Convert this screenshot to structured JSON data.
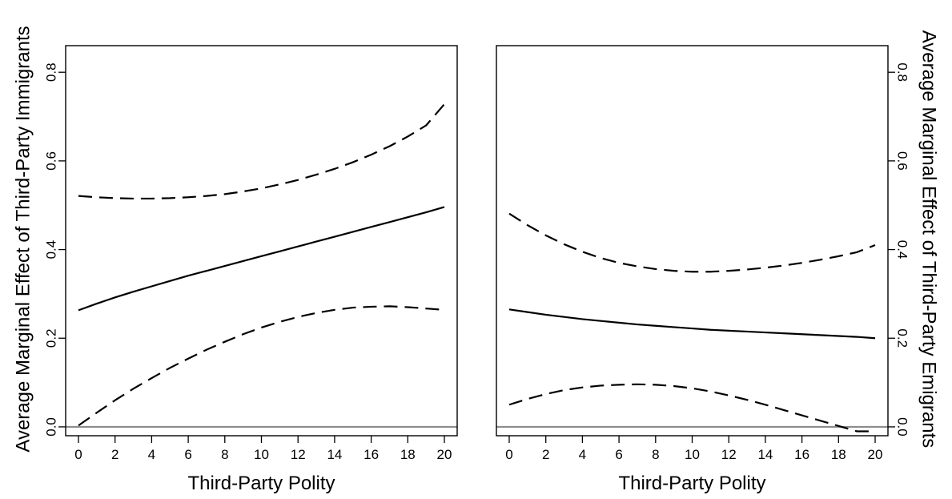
{
  "chart_data": [
    {
      "type": "line",
      "panel": "left",
      "xlabel": "Third-Party Polity",
      "ylabel": "Average Marginal Effect of Third-Party Immigrants",
      "y_axis_side": "left",
      "xlim": [
        -0.7,
        20.7
      ],
      "ylim": [
        -0.02,
        0.86
      ],
      "x_ticks": [
        0,
        2,
        4,
        6,
        8,
        10,
        12,
        14,
        16,
        18,
        20
      ],
      "x_tick_labels": [
        "0",
        "2",
        "4",
        "6",
        "8",
        "10",
        "12",
        "14",
        "16",
        "18",
        "20"
      ],
      "y_ticks": [
        0.0,
        0.2,
        0.4,
        0.6,
        0.8
      ],
      "y_tick_labels": [
        "0.0",
        "0.2",
        "0.4",
        "0.6",
        "0.8"
      ],
      "reference_line": {
        "y": 0,
        "color": "#8c8c8c"
      },
      "x": [
        0,
        1,
        2,
        3,
        4,
        5,
        6,
        7,
        8,
        9,
        10,
        11,
        12,
        13,
        14,
        15,
        16,
        17,
        18,
        19,
        20
      ],
      "series": [
        {
          "role": "estimate",
          "style": "solid",
          "color": "#000000",
          "values": [
            0.263,
            0.278,
            0.292,
            0.305,
            0.317,
            0.329,
            0.341,
            0.352,
            0.363,
            0.374,
            0.385,
            0.396,
            0.407,
            0.418,
            0.429,
            0.44,
            0.451,
            0.462,
            0.473,
            0.484,
            0.496
          ]
        },
        {
          "role": "upper-bound",
          "style": "dashed",
          "color": "#000000",
          "values": [
            0.521,
            0.518,
            0.516,
            0.515,
            0.515,
            0.516,
            0.518,
            0.521,
            0.525,
            0.531,
            0.538,
            0.547,
            0.557,
            0.569,
            0.582,
            0.597,
            0.614,
            0.633,
            0.655,
            0.68,
            0.728
          ]
        },
        {
          "role": "lower-bound",
          "style": "dashed",
          "color": "#000000",
          "values": [
            0.003,
            0.032,
            0.06,
            0.086,
            0.11,
            0.133,
            0.154,
            0.174,
            0.192,
            0.209,
            0.224,
            0.237,
            0.248,
            0.257,
            0.264,
            0.269,
            0.271,
            0.272,
            0.27,
            0.267,
            0.264
          ]
        }
      ]
    },
    {
      "type": "line",
      "panel": "right",
      "xlabel": "Third-Party Polity",
      "ylabel": "Average Marginal Effect of Third-Party Emigrants",
      "y_axis_side": "right",
      "xlim": [
        -0.7,
        20.7
      ],
      "ylim": [
        -0.02,
        0.86
      ],
      "x_ticks": [
        0,
        2,
        4,
        6,
        8,
        10,
        12,
        14,
        16,
        18,
        20
      ],
      "x_tick_labels": [
        "0",
        "2",
        "4",
        "6",
        "8",
        "10",
        "12",
        "14",
        "16",
        "18",
        "20"
      ],
      "y_ticks": [
        0.0,
        0.2,
        0.4,
        0.6,
        0.8
      ],
      "y_tick_labels": [
        "0.0",
        "0.2",
        "0.4",
        "0.6",
        "0.8"
      ],
      "reference_line": {
        "y": 0,
        "color": "#8c8c8c"
      },
      "x": [
        0,
        1,
        2,
        3,
        4,
        5,
        6,
        7,
        8,
        9,
        10,
        11,
        12,
        13,
        14,
        15,
        16,
        17,
        18,
        19,
        20
      ],
      "series": [
        {
          "role": "estimate",
          "style": "solid",
          "color": "#000000",
          "values": [
            0.265,
            0.259,
            0.253,
            0.248,
            0.243,
            0.239,
            0.235,
            0.231,
            0.228,
            0.225,
            0.222,
            0.219,
            0.217,
            0.215,
            0.213,
            0.211,
            0.209,
            0.207,
            0.205,
            0.203,
            0.2
          ]
        },
        {
          "role": "upper-bound",
          "style": "dashed",
          "color": "#000000",
          "values": [
            0.481,
            0.455,
            0.432,
            0.412,
            0.395,
            0.381,
            0.37,
            0.362,
            0.356,
            0.352,
            0.35,
            0.35,
            0.352,
            0.355,
            0.359,
            0.364,
            0.37,
            0.377,
            0.385,
            0.394,
            0.41
          ]
        },
        {
          "role": "lower-bound",
          "style": "dashed",
          "color": "#000000",
          "values": [
            0.05,
            0.063,
            0.074,
            0.083,
            0.089,
            0.093,
            0.095,
            0.096,
            0.095,
            0.092,
            0.087,
            0.08,
            0.071,
            0.061,
            0.05,
            0.038,
            0.026,
            0.014,
            0.002,
            -0.01,
            -0.01
          ]
        }
      ]
    }
  ]
}
